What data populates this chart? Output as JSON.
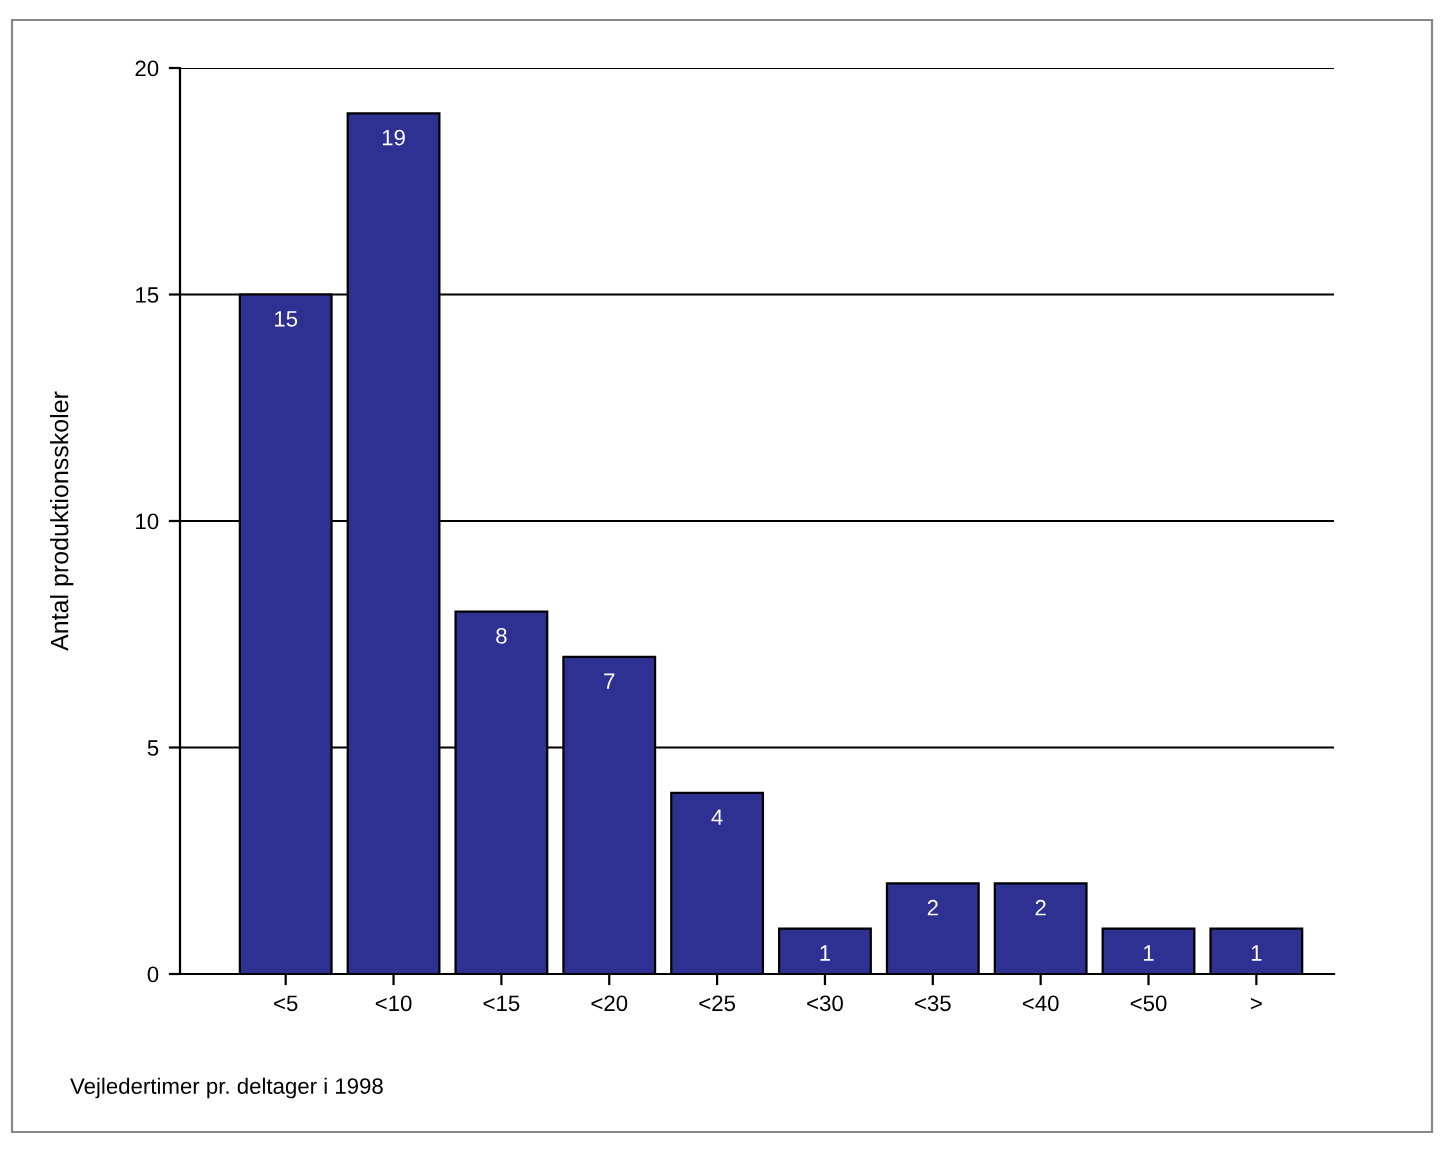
{
  "chart_data": {
    "type": "bar",
    "xlabel": "Vejledertimer pr. deltager i 1998",
    "ylabel": "Antal produktionsskoler",
    "categories": [
      "<5",
      "<10",
      "<15",
      "<20",
      "<25",
      "<30",
      "<35",
      "<40",
      "<50",
      ">"
    ],
    "values": [
      15,
      19,
      8,
      7,
      4,
      1,
      2,
      2,
      1,
      1
    ],
    "color": "#2e3192",
    "ylim": [
      0,
      20
    ],
    "yticks": [
      0,
      5,
      10,
      15,
      20
    ],
    "grid": "y",
    "data_labels": true
  }
}
